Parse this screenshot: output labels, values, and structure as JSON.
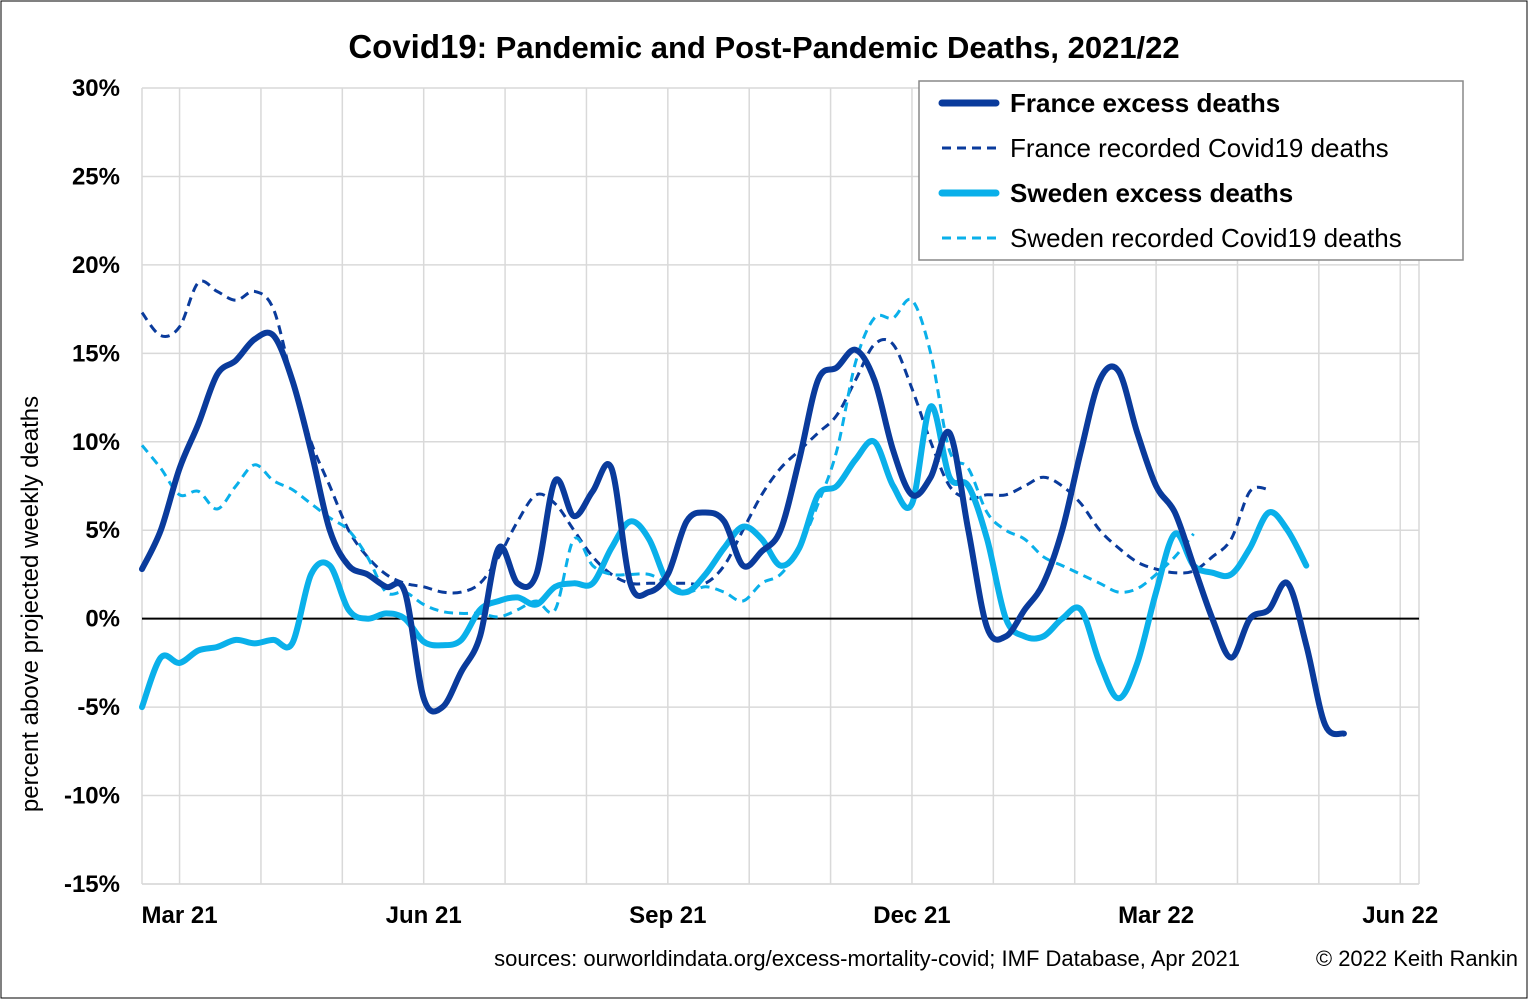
{
  "chart_data": {
    "type": "line",
    "title_bold": "Covid19",
    "title_rest": ": Pandemic and Post-Pandemic Deaths, 2021/22",
    "ylabel": "percent above projected weekly deaths",
    "xlabel": "",
    "ylim": [
      -15,
      30
    ],
    "yticks": [
      "-15%",
      "-10%",
      "-5%",
      "0%",
      "5%",
      "10%",
      "15%",
      "20%",
      "25%",
      "30%"
    ],
    "xlim": [
      0,
      68
    ],
    "xticks": [
      {
        "label": "Mar 21",
        "x": 2
      },
      {
        "label": "Jun 21",
        "x": 15
      },
      {
        "label": "Sep 21",
        "x": 28
      },
      {
        "label": "Dec 21",
        "x": 41
      },
      {
        "label": "Mar 22",
        "x": 54
      },
      {
        "label": "Jun 22",
        "x": 67
      }
    ],
    "grid": true,
    "legend_position": "top-right",
    "series": [
      {
        "name": "France excess deaths",
        "color": "#0a3b9c",
        "style": "solid",
        "width": 6,
        "points": [
          [
            0,
            2.8
          ],
          [
            1,
            5
          ],
          [
            2,
            8.5
          ],
          [
            3,
            11
          ],
          [
            4,
            13.8
          ],
          [
            5,
            14.6
          ],
          [
            6,
            15.8
          ],
          [
            7,
            16
          ],
          [
            8,
            13.5
          ],
          [
            9,
            9.5
          ],
          [
            10,
            5
          ],
          [
            11,
            3
          ],
          [
            12,
            2.5
          ],
          [
            13,
            1.8
          ],
          [
            14,
            1.5
          ],
          [
            15,
            -4.5
          ],
          [
            16,
            -5
          ],
          [
            17,
            -3
          ],
          [
            18,
            -1
          ],
          [
            19,
            4
          ],
          [
            20,
            2
          ],
          [
            21,
            2.5
          ],
          [
            22,
            7.8
          ],
          [
            23,
            5.8
          ],
          [
            24,
            7.2
          ],
          [
            25,
            8.5
          ],
          [
            26,
            2
          ],
          [
            27,
            1.5
          ],
          [
            28,
            2.5
          ],
          [
            29,
            5.5
          ],
          [
            30,
            6
          ],
          [
            31,
            5.5
          ],
          [
            32,
            3
          ],
          [
            33,
            3.8
          ],
          [
            34,
            5
          ],
          [
            35,
            9
          ],
          [
            36,
            13.5
          ],
          [
            37,
            14.2
          ],
          [
            38,
            15.2
          ],
          [
            39,
            13.5
          ],
          [
            40,
            9.5
          ],
          [
            41,
            7
          ],
          [
            42,
            8
          ],
          [
            43,
            10.5
          ],
          [
            44,
            5
          ],
          [
            45,
            -0.5
          ],
          [
            46,
            -1
          ],
          [
            47,
            0.5
          ],
          [
            48,
            2
          ],
          [
            49,
            5
          ],
          [
            50,
            9.5
          ],
          [
            51,
            13.5
          ],
          [
            52,
            14
          ],
          [
            53,
            10.5
          ],
          [
            54,
            7.5
          ],
          [
            55,
            6
          ],
          [
            56,
            3
          ],
          [
            57,
            0
          ],
          [
            58,
            -2.2
          ],
          [
            59,
            0
          ],
          [
            60,
            0.5
          ],
          [
            61,
            2
          ],
          [
            62,
            -1.5
          ],
          [
            63,
            -6
          ],
          [
            64,
            -6.5
          ]
        ]
      },
      {
        "name": "France recorded Covid19 deaths",
        "color": "#0a3b9c",
        "style": "dashed",
        "width": 3,
        "points": [
          [
            0,
            17.3
          ],
          [
            1,
            16
          ],
          [
            2,
            16.5
          ],
          [
            3,
            19
          ],
          [
            4,
            18.5
          ],
          [
            5,
            18
          ],
          [
            6,
            18.5
          ],
          [
            7,
            17.5
          ],
          [
            8,
            13.5
          ],
          [
            9,
            10
          ],
          [
            10,
            7.5
          ],
          [
            11,
            5
          ],
          [
            12,
            3.5
          ],
          [
            13,
            2.5
          ],
          [
            14,
            2
          ],
          [
            15,
            1.8
          ],
          [
            16,
            1.5
          ],
          [
            17,
            1.5
          ],
          [
            18,
            2
          ],
          [
            19,
            3.5
          ],
          [
            20,
            5.5
          ],
          [
            21,
            7
          ],
          [
            22,
            6.5
          ],
          [
            23,
            5
          ],
          [
            24,
            3.5
          ],
          [
            25,
            2.5
          ],
          [
            26,
            2
          ],
          [
            27,
            2
          ],
          [
            28,
            2
          ],
          [
            29,
            2
          ],
          [
            30,
            2
          ],
          [
            31,
            3
          ],
          [
            32,
            5
          ],
          [
            33,
            7
          ],
          [
            34,
            8.5
          ],
          [
            35,
            9.5
          ],
          [
            36,
            10.5
          ],
          [
            37,
            11.5
          ],
          [
            38,
            13.5
          ],
          [
            39,
            15.5
          ],
          [
            40,
            15.5
          ],
          [
            41,
            13
          ],
          [
            42,
            10
          ],
          [
            43,
            7.5
          ],
          [
            44,
            6.8
          ],
          [
            45,
            7
          ],
          [
            46,
            7
          ],
          [
            47,
            7.5
          ],
          [
            48,
            8
          ],
          [
            49,
            7.5
          ],
          [
            50,
            6.5
          ],
          [
            51,
            5
          ],
          [
            52,
            4
          ],
          [
            53,
            3.2
          ],
          [
            54,
            2.8
          ],
          [
            55,
            2.6
          ],
          [
            56,
            2.7
          ],
          [
            57,
            3.5
          ],
          [
            58,
            4.5
          ],
          [
            59,
            7.2
          ],
          [
            60,
            7.3
          ]
        ]
      },
      {
        "name": "Sweden excess deaths",
        "color": "#0ab0ea",
        "style": "solid",
        "width": 6,
        "points": [
          [
            0,
            -5
          ],
          [
            1,
            -2.2
          ],
          [
            2,
            -2.5
          ],
          [
            3,
            -1.8
          ],
          [
            4,
            -1.6
          ],
          [
            5,
            -1.2
          ],
          [
            6,
            -1.4
          ],
          [
            7,
            -1.2
          ],
          [
            8,
            -1.4
          ],
          [
            9,
            2.5
          ],
          [
            10,
            3
          ],
          [
            11,
            0.5
          ],
          [
            12,
            0
          ],
          [
            13,
            0.3
          ],
          [
            14,
            0
          ],
          [
            15,
            -1.3
          ],
          [
            16,
            -1.5
          ],
          [
            17,
            -1.2
          ],
          [
            18,
            0.5
          ],
          [
            19,
            1
          ],
          [
            20,
            1.2
          ],
          [
            21,
            0.8
          ],
          [
            22,
            1.8
          ],
          [
            23,
            2
          ],
          [
            24,
            2
          ],
          [
            25,
            4
          ],
          [
            26,
            5.5
          ],
          [
            27,
            4.5
          ],
          [
            28,
            2
          ],
          [
            29,
            1.5
          ],
          [
            30,
            2.5
          ],
          [
            31,
            4
          ],
          [
            32,
            5.2
          ],
          [
            33,
            4.5
          ],
          [
            34,
            3
          ],
          [
            35,
            4
          ],
          [
            36,
            7
          ],
          [
            37,
            7.5
          ],
          [
            38,
            9
          ],
          [
            39,
            10
          ],
          [
            40,
            7.5
          ],
          [
            41,
            6.5
          ],
          [
            42,
            12
          ],
          [
            43,
            8
          ],
          [
            44,
            7.5
          ],
          [
            45,
            4.5
          ],
          [
            46,
            0
          ],
          [
            47,
            -1
          ],
          [
            48,
            -1
          ],
          [
            49,
            0
          ],
          [
            50,
            0.5
          ],
          [
            51,
            -2.5
          ],
          [
            52,
            -4.5
          ],
          [
            53,
            -2.5
          ],
          [
            54,
            1.5
          ],
          [
            55,
            4.8
          ],
          [
            56,
            3
          ],
          [
            57,
            2.6
          ],
          [
            58,
            2.5
          ],
          [
            59,
            4
          ],
          [
            60,
            6
          ],
          [
            61,
            5
          ],
          [
            62,
            3
          ]
        ]
      },
      {
        "name": "Sweden recorded Covid19 deaths",
        "color": "#0ab0ea",
        "style": "dashed",
        "width": 3,
        "points": [
          [
            0,
            9.8
          ],
          [
            1,
            8.5
          ],
          [
            2,
            7
          ],
          [
            3,
            7.2
          ],
          [
            4,
            6.2
          ],
          [
            5,
            7.5
          ],
          [
            6,
            8.7
          ],
          [
            7,
            7.8
          ],
          [
            8,
            7.3
          ],
          [
            9,
            6.5
          ],
          [
            10,
            5.7
          ],
          [
            11,
            5
          ],
          [
            12,
            3.5
          ],
          [
            13,
            1.5
          ],
          [
            14,
            1.5
          ],
          [
            15,
            0.8
          ],
          [
            16,
            0.4
          ],
          [
            17,
            0.3
          ],
          [
            18,
            0.3
          ],
          [
            19,
            0.1
          ],
          [
            20,
            0.5
          ],
          [
            21,
            1
          ],
          [
            22,
            0.5
          ],
          [
            23,
            4.5
          ],
          [
            24,
            3
          ],
          [
            25,
            2.5
          ],
          [
            26,
            2.5
          ],
          [
            27,
            2.5
          ],
          [
            28,
            2
          ],
          [
            29,
            1.5
          ],
          [
            30,
            1.8
          ],
          [
            31,
            1.5
          ],
          [
            32,
            1
          ],
          [
            33,
            2
          ],
          [
            34,
            2.5
          ],
          [
            35,
            4
          ],
          [
            36,
            6.5
          ],
          [
            37,
            9.5
          ],
          [
            38,
            14.5
          ],
          [
            39,
            17
          ],
          [
            40,
            17
          ],
          [
            41,
            18
          ],
          [
            42,
            15
          ],
          [
            43,
            9.5
          ],
          [
            44,
            8.5
          ],
          [
            45,
            6
          ],
          [
            46,
            5
          ],
          [
            47,
            4.5
          ],
          [
            48,
            3.5
          ],
          [
            49,
            3
          ],
          [
            50,
            2.5
          ],
          [
            51,
            2
          ],
          [
            52,
            1.5
          ],
          [
            53,
            1.7
          ],
          [
            54,
            2.5
          ],
          [
            55,
            3.5
          ],
          [
            56,
            4.8
          ]
        ]
      }
    ],
    "sources": "sources: ourworldindata.org/excess-mortality-covid; IMF Database, Apr 2021",
    "copyright": "© 2022 Keith Rankin"
  }
}
